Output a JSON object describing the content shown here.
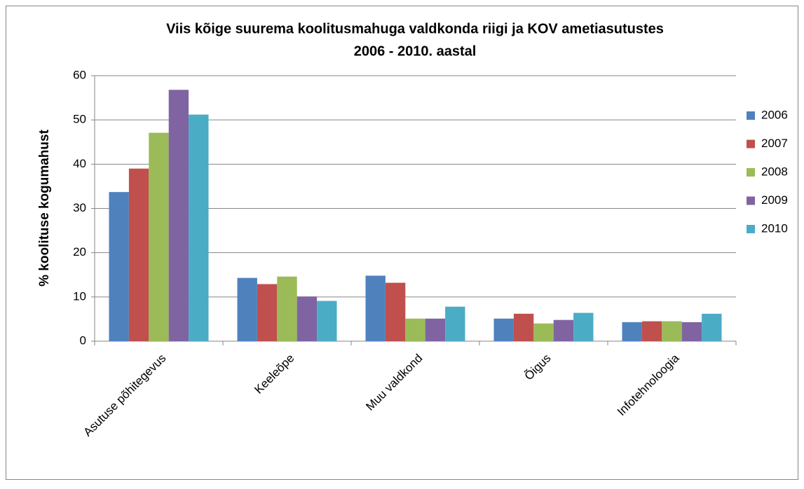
{
  "chart_data": {
    "type": "bar",
    "title": [
      "Viis kõige suurema koolitusmahuga valdkonda riigi ja KOV ametiasutustes",
      "2006 - 2010. aastal"
    ],
    "y_label": "% koolituse kogumahust",
    "categories": [
      "Asutuse põhitegevus",
      "Keeleõpe",
      "Muu valdkond",
      "Õigus",
      "Infotehnoloogia"
    ],
    "series": [
      {
        "name": "2006",
        "color": "#4f81bd",
        "values": [
          33.7,
          14.3,
          14.8,
          5.1,
          4.3
        ]
      },
      {
        "name": "2007",
        "color": "#c0504d",
        "values": [
          39.0,
          12.9,
          13.2,
          6.2,
          4.5
        ]
      },
      {
        "name": "2008",
        "color": "#9bbb59",
        "values": [
          47.1,
          14.6,
          5.1,
          4.0,
          4.5
        ]
      },
      {
        "name": "2009",
        "color": "#8064a2",
        "values": [
          56.8,
          10.1,
          5.1,
          4.8,
          4.3
        ]
      },
      {
        "name": "2010",
        "color": "#4bacc6",
        "values": [
          51.2,
          9.1,
          7.8,
          6.4,
          6.2
        ]
      }
    ],
    "ylim": [
      0,
      60
    ],
    "yticks": [
      0,
      10,
      20,
      30,
      40,
      50,
      60
    ],
    "grid": true,
    "legend": "right"
  }
}
